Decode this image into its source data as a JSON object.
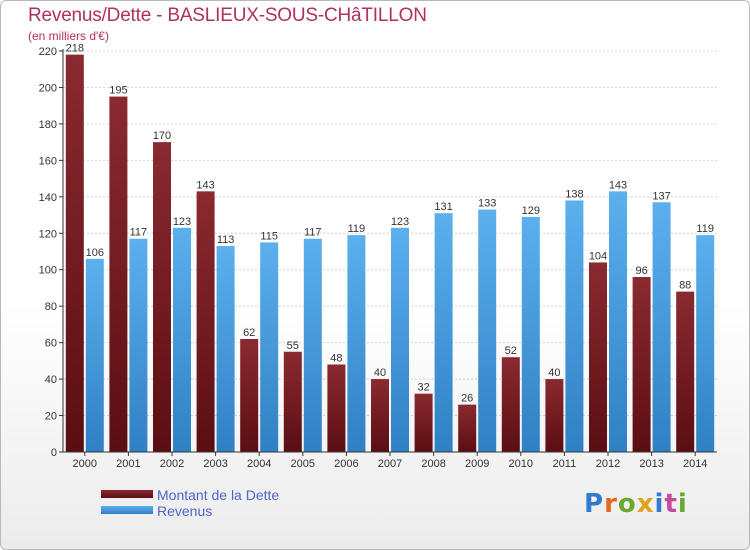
{
  "chart_data": {
    "type": "bar",
    "title": "Revenus/Dette - BASLIEUX-SOUS-CHâTILLON",
    "subtitle": "(en milliers d'€)",
    "categories": [
      "2000",
      "2001",
      "2002",
      "2003",
      "2004",
      "2005",
      "2006",
      "2007",
      "2008",
      "2009",
      "2010",
      "2011",
      "2012",
      "2013",
      "2014"
    ],
    "series": [
      {
        "name": "Montant de la Dette",
        "color": "#7a1f24",
        "values": [
          218,
          195,
          170,
          143,
          62,
          55,
          48,
          40,
          32,
          26,
          52,
          40,
          104,
          96,
          88
        ]
      },
      {
        "name": "Revenus",
        "color": "#4ea5e6",
        "values": [
          106,
          117,
          123,
          113,
          115,
          117,
          119,
          123,
          131,
          133,
          129,
          138,
          143,
          137,
          119
        ]
      }
    ],
    "ylim": [
      0,
      220
    ],
    "yticks": [
      0,
      20,
      40,
      60,
      80,
      100,
      120,
      140,
      160,
      180,
      200,
      220
    ],
    "grid": true,
    "legend": "bottom-left"
  },
  "legend": {
    "items": [
      {
        "label": "Montant de la Dette",
        "color": "#7a1f24"
      },
      {
        "label": "Revenus",
        "color": "#4ea5e6"
      }
    ]
  },
  "logo": {
    "text": "Proxiti",
    "letters": [
      {
        "ch": "P",
        "color": "#2e7bd0"
      },
      {
        "ch": "r",
        "color": "#e06a1f"
      },
      {
        "ch": "o",
        "color": "#6aa82f"
      },
      {
        "ch": "x",
        "color": "#e0a21f"
      },
      {
        "ch": "i",
        "color": "#2e7bd0"
      },
      {
        "ch": "t",
        "color": "#c64b9a"
      },
      {
        "ch": "i",
        "color": "#6aa82f"
      }
    ]
  }
}
